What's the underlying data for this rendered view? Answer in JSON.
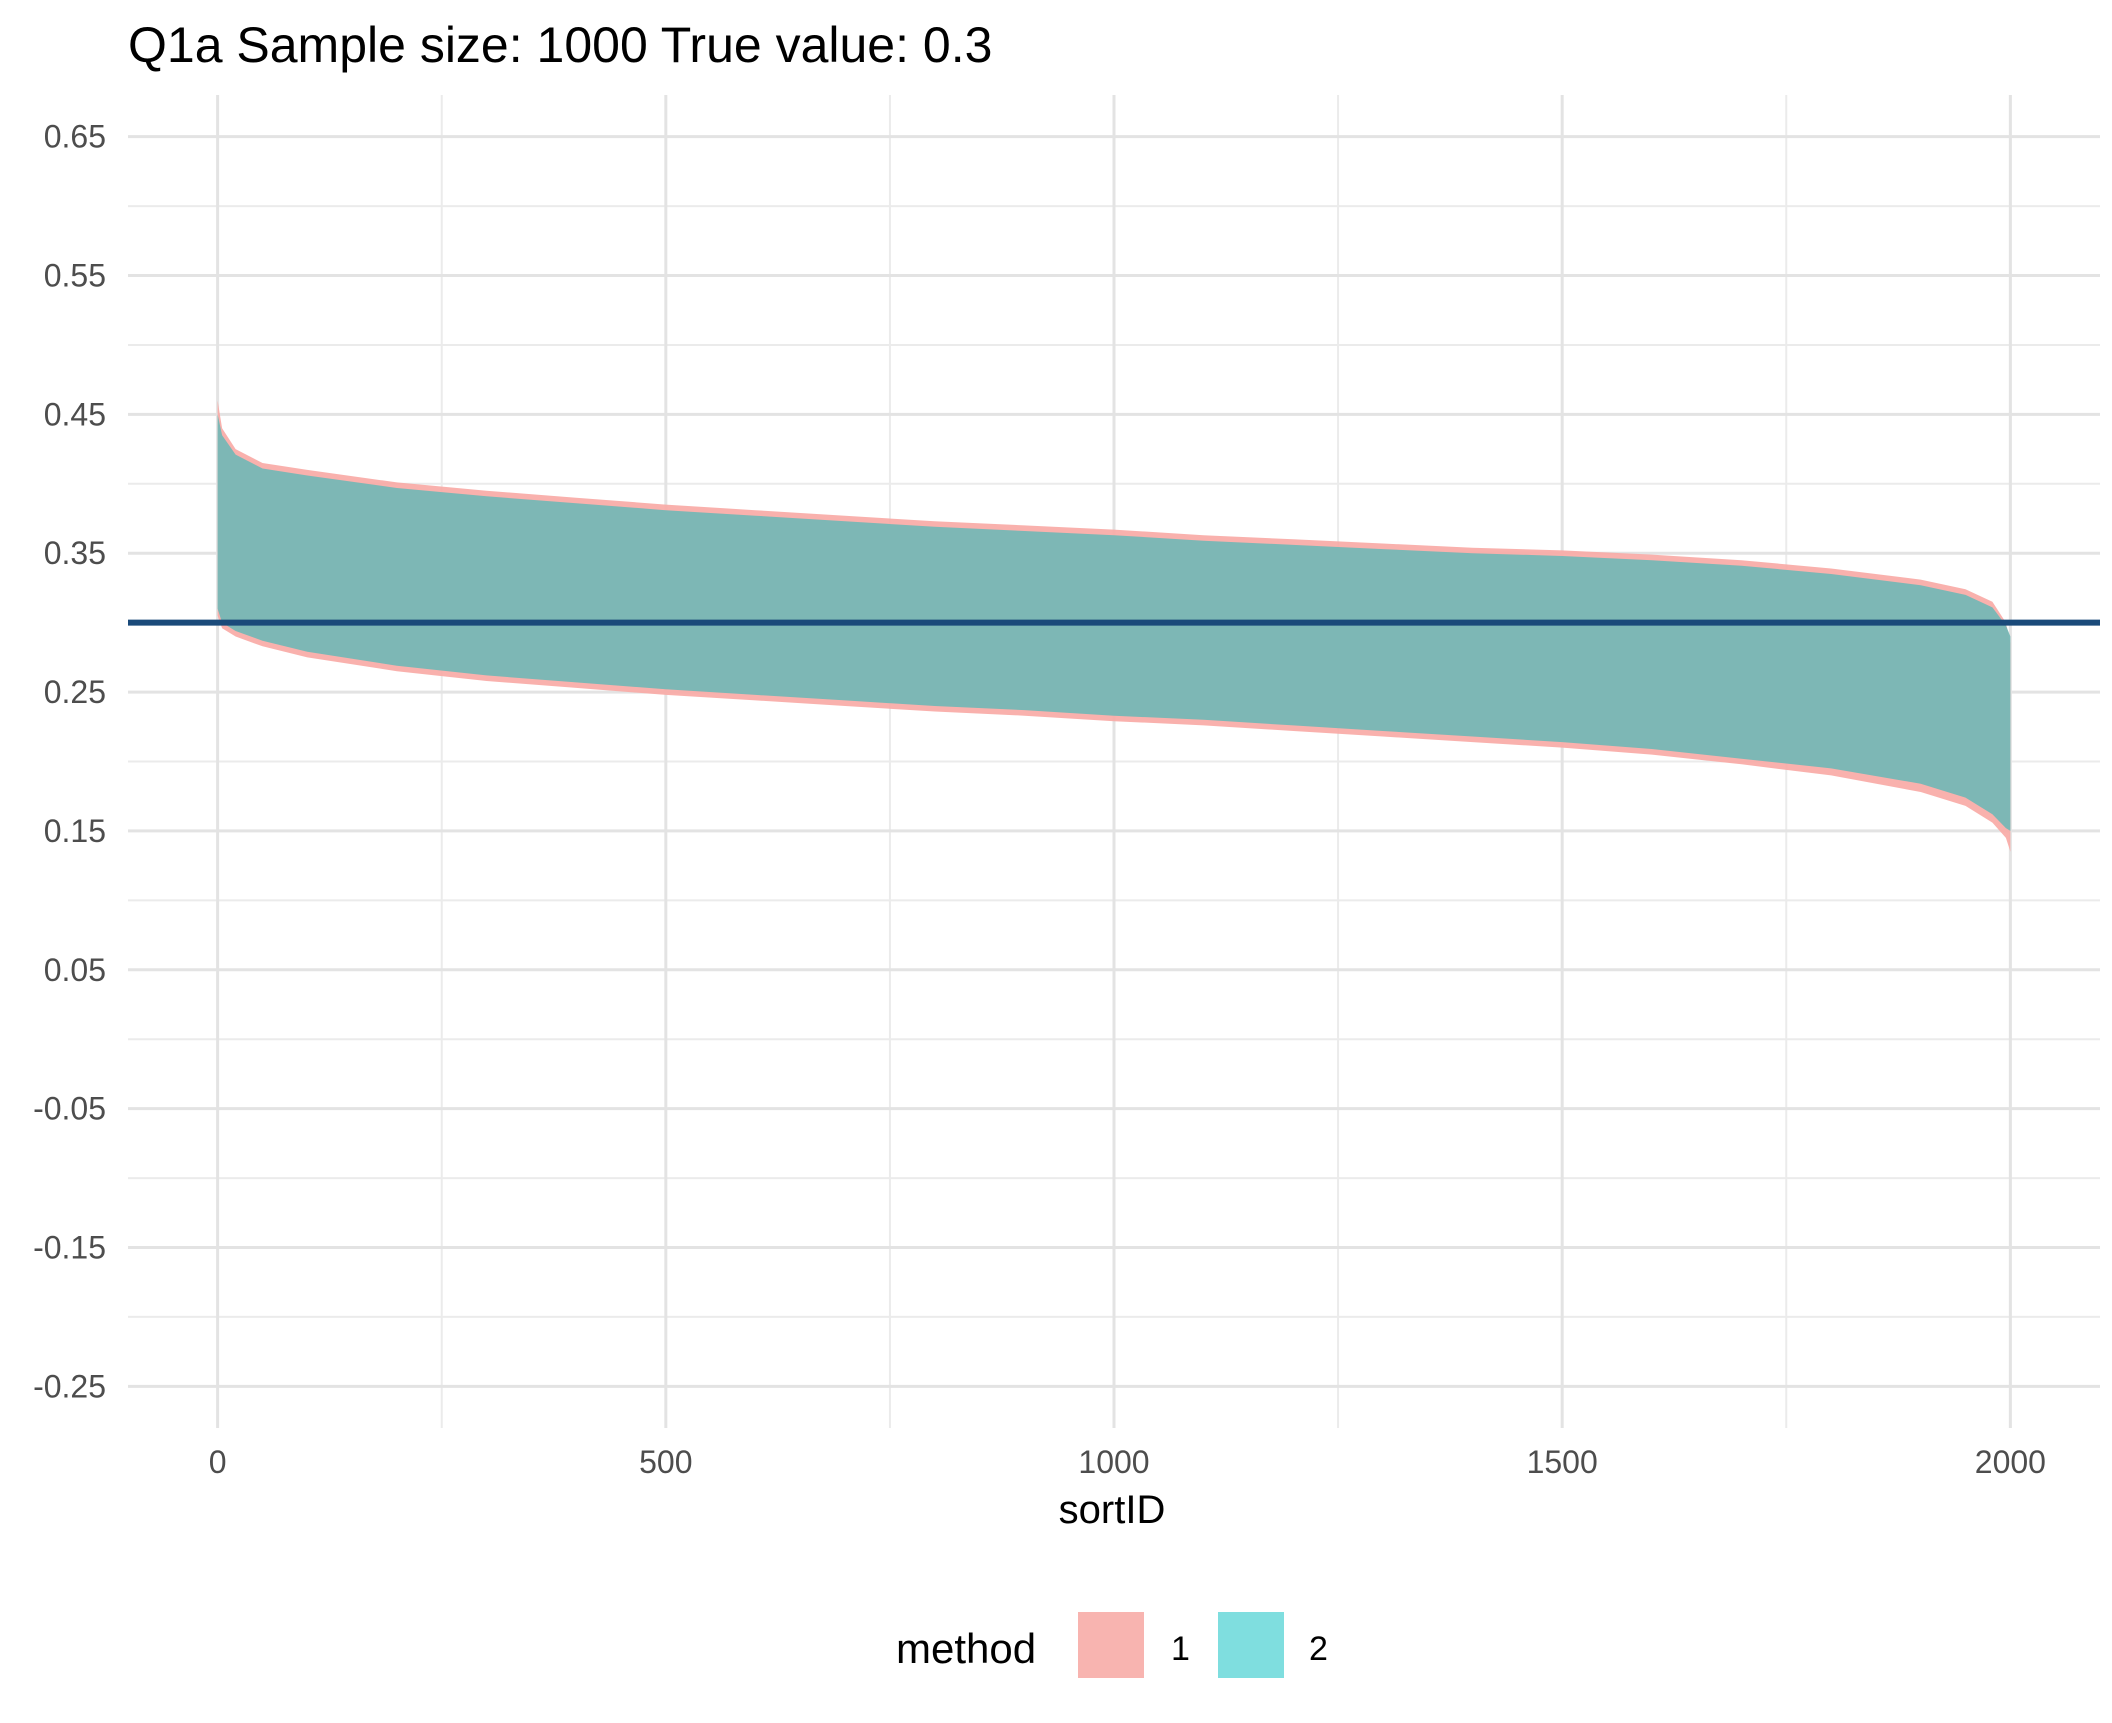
{
  "chart_data": {
    "type": "area",
    "title": "Q1a  Sample size: 1000  True value: 0.3",
    "xlabel": "sortID",
    "ylabel": "",
    "xlim": [
      -100,
      2100
    ],
    "ylim": [
      -0.28,
      0.68
    ],
    "x_ticks": [
      0,
      500,
      1000,
      1500,
      2000
    ],
    "x_tick_labels": [
      "0",
      "500",
      "1000",
      "1500",
      "2000"
    ],
    "y_ticks": [
      0.65,
      0.55,
      0.45,
      0.35,
      0.25,
      0.15,
      0.05,
      -0.05,
      -0.15,
      -0.25
    ],
    "y_tick_labels": [
      "0.65",
      "0.55",
      "0.45",
      "0.35",
      "0.25",
      "0.15",
      "0.05",
      "-0.05",
      "-0.15",
      "-0.25"
    ],
    "grid": true,
    "reference_line": {
      "y": 0.3,
      "color": "#1a4a7a"
    },
    "legend": {
      "title": "method",
      "position": "bottom",
      "entries": [
        {
          "label": "1",
          "color": "#f8b4b0"
        },
        {
          "label": "2",
          "color": "#7fdedf"
        }
      ]
    },
    "series": [
      {
        "name": "1",
        "color": "#f8a8a4",
        "x": [
          0,
          5,
          20,
          50,
          100,
          200,
          300,
          400,
          500,
          600,
          700,
          800,
          900,
          1000,
          1100,
          1200,
          1300,
          1400,
          1500,
          1600,
          1700,
          1800,
          1900,
          1950,
          1980,
          1995,
          2000
        ],
        "upper": [
          0.46,
          0.44,
          0.425,
          0.415,
          0.41,
          0.401,
          0.395,
          0.39,
          0.385,
          0.381,
          0.377,
          0.373,
          0.37,
          0.367,
          0.363,
          0.36,
          0.357,
          0.354,
          0.352,
          0.349,
          0.345,
          0.339,
          0.331,
          0.324,
          0.315,
          0.3,
          0.285
        ],
        "lower": [
          0.305,
          0.296,
          0.29,
          0.283,
          0.275,
          0.265,
          0.258,
          0.253,
          0.248,
          0.244,
          0.24,
          0.236,
          0.233,
          0.229,
          0.226,
          0.222,
          0.218,
          0.214,
          0.21,
          0.205,
          0.198,
          0.19,
          0.178,
          0.168,
          0.156,
          0.145,
          0.135
        ]
      },
      {
        "name": "2",
        "color": "#72b7b5",
        "x": [
          0,
          5,
          20,
          50,
          100,
          200,
          300,
          400,
          500,
          600,
          700,
          800,
          900,
          1000,
          1100,
          1200,
          1300,
          1400,
          1500,
          1600,
          1700,
          1800,
          1900,
          1950,
          1980,
          1995,
          2000
        ],
        "upper": [
          0.45,
          0.435,
          0.421,
          0.411,
          0.406,
          0.397,
          0.391,
          0.386,
          0.381,
          0.377,
          0.373,
          0.369,
          0.366,
          0.363,
          0.359,
          0.356,
          0.353,
          0.35,
          0.348,
          0.345,
          0.341,
          0.335,
          0.327,
          0.32,
          0.311,
          0.298,
          0.29
        ],
        "lower": [
          0.31,
          0.3,
          0.294,
          0.287,
          0.279,
          0.269,
          0.262,
          0.257,
          0.252,
          0.248,
          0.244,
          0.24,
          0.237,
          0.233,
          0.23,
          0.226,
          0.222,
          0.218,
          0.214,
          0.209,
          0.202,
          0.195,
          0.184,
          0.174,
          0.162,
          0.152,
          0.15
        ]
      }
    ]
  }
}
